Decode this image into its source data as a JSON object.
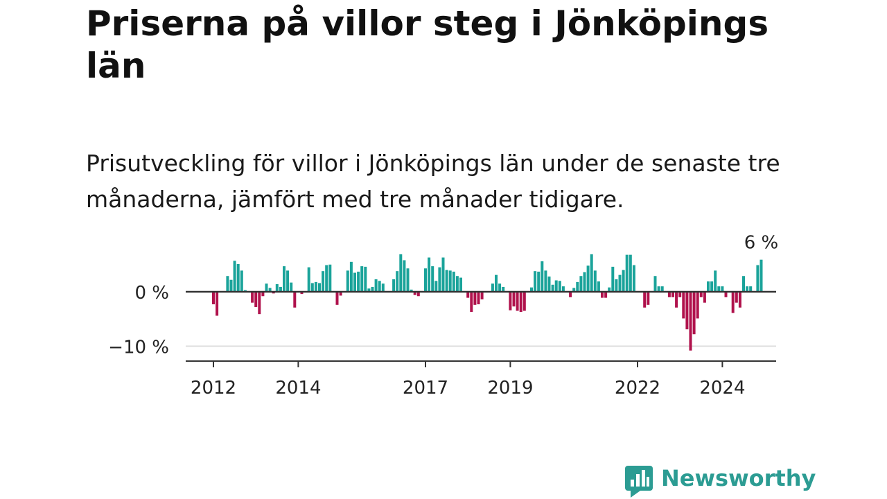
{
  "title": "Priserna på villor steg i Jönköpings län",
  "subtitle": "Prisutveckling för villor i Jönköpings län under de senaste tre månaderna, jämfört med tre månader tidigare.",
  "brand": {
    "name": "Newsworthy",
    "color": "#2c9c93",
    "icon": "newsworthy-logo-icon"
  },
  "chart_data": {
    "type": "bar",
    "ylim": [
      -13,
      7
    ],
    "yticks": [
      {
        "value": 0,
        "label": "0 %"
      },
      {
        "value": -10,
        "label": "−10 %"
      }
    ],
    "xticks": [
      {
        "year": 2012,
        "label": "2012"
      },
      {
        "year": 2014,
        "label": "2014"
      },
      {
        "year": 2017,
        "label": "2017"
      },
      {
        "year": 2019,
        "label": "2019"
      },
      {
        "year": 2022,
        "label": "2022"
      },
      {
        "year": 2024,
        "label": "2024"
      }
    ],
    "start": "2012-01",
    "colors": {
      "positive": "#1aa39a",
      "negative": "#b0124c",
      "axis": "#333333",
      "grid": "#dddddd"
    },
    "last_label": "6 %",
    "values": [
      -2.3,
      -4.4,
      0,
      0,
      2.9,
      2.2,
      5.7,
      5.1,
      3.9,
      0.3,
      0,
      -2.0,
      -2.8,
      -4.1,
      -0.8,
      1.5,
      0.7,
      -0.3,
      1.4,
      0.9,
      4.7,
      3.9,
      1.7,
      -2.9,
      0,
      -0.4,
      0,
      4.5,
      1.6,
      1.8,
      1.6,
      3.8,
      4.9,
      5.0,
      0,
      -2.4,
      -0.7,
      0,
      3.9,
      5.5,
      3.5,
      3.7,
      4.7,
      4.6,
      0.6,
      0.9,
      2.3,
      2.0,
      1.5,
      0,
      0,
      2.3,
      3.8,
      6.9,
      5.8,
      4.3,
      0.4,
      -0.6,
      -0.8,
      0,
      4.3,
      6.3,
      4.7,
      2.0,
      4.5,
      6.3,
      4.0,
      3.9,
      3.7,
      2.9,
      2.6,
      0,
      -1.1,
      -3.7,
      -2.4,
      -2.3,
      -1.4,
      0,
      0,
      1.5,
      3.1,
      1.5,
      0.9,
      0,
      -3.4,
      -2.7,
      -3.5,
      -3.7,
      -3.5,
      0,
      0.8,
      3.8,
      3.7,
      5.6,
      3.9,
      2.8,
      1.3,
      2.1,
      2.0,
      1.0,
      0,
      -1.0,
      0.7,
      1.8,
      2.9,
      3.6,
      4.8,
      6.9,
      3.9,
      1.9,
      -1.1,
      -1.1,
      0.8,
      4.6,
      2.3,
      3.1,
      4.0,
      6.8,
      6.8,
      4.9,
      0,
      0,
      -2.9,
      -2.4,
      0,
      2.9,
      1.0,
      1.0,
      0,
      -1.0,
      -1.0,
      -2.9,
      -1.0,
      -4.9,
      -6.9,
      -10.8,
      -7.8,
      -4.9,
      -1.0,
      -2.0,
      1.9,
      1.9,
      3.9,
      1.0,
      1.0,
      -1.0,
      0,
      -3.9,
      -2.0,
      -2.9,
      2.9,
      1.0,
      1.0,
      0,
      4.9,
      5.9
    ]
  }
}
